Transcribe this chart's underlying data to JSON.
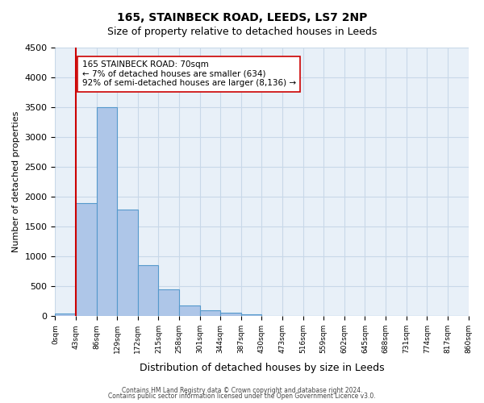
{
  "title": "165, STAINBECK ROAD, LEEDS, LS7 2NP",
  "subtitle": "Size of property relative to detached houses in Leeds",
  "xlabel": "Distribution of detached houses by size in Leeds",
  "ylabel": "Number of detached properties",
  "bin_labels": [
    "0sqm",
    "43sqm",
    "86sqm",
    "129sqm",
    "172sqm",
    "215sqm",
    "258sqm",
    "301sqm",
    "344sqm",
    "387sqm",
    "430sqm",
    "473sqm",
    "516sqm",
    "559sqm",
    "602sqm",
    "645sqm",
    "688sqm",
    "731sqm",
    "774sqm",
    "817sqm",
    "860sqm"
  ],
  "bar_heights": [
    50,
    1900,
    3500,
    1780,
    850,
    450,
    175,
    100,
    55,
    30,
    0,
    0,
    0,
    0,
    0,
    0,
    0,
    0,
    0,
    0
  ],
  "bar_color": "#aec6e8",
  "bar_edge_color": "#5599cc",
  "property_line_x": 1,
  "property_line_label": "165 STAINBECK ROAD: 70sqm",
  "annotation_line1": "← 7% of detached houses are smaller (634)",
  "annotation_line2": "92% of semi-detached houses are larger (8,136) →",
  "red_line_color": "#cc0000",
  "annotation_box_color": "#ffffff",
  "annotation_box_edge_color": "#cc0000",
  "ylim": [
    0,
    4500
  ],
  "yticks": [
    0,
    500,
    1000,
    1500,
    2000,
    2500,
    3000,
    3500,
    4000,
    4500
  ],
  "footer1": "Contains HM Land Registry data © Crown copyright and database right 2024.",
  "footer2": "Contains public sector information licensed under the Open Government Licence v3.0.",
  "background_color": "#ffffff",
  "grid_color": "#c8d8e8"
}
